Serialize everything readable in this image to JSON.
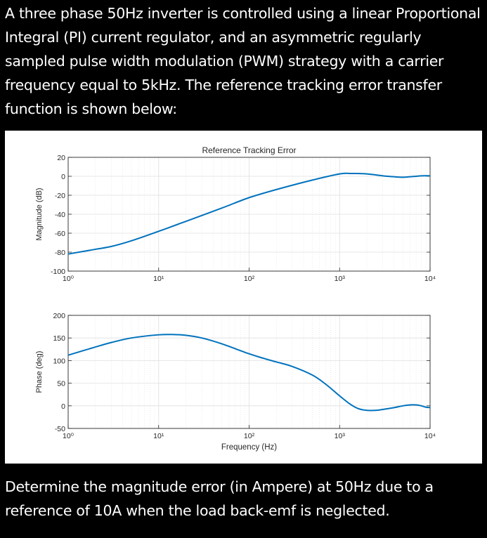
{
  "question": {
    "intro": "A three phase 50Hz inverter is controlled using a linear Proportional Integral (PI) current regulator, and an asymmetric regularly sampled pulse width modulation (PWM) strategy with a carrier frequency equal to 5kHz. The reference tracking error transfer function is shown below:",
    "prompt": "Determine the magnitude error (in Ampere) at 50Hz due to a reference of 10A when the load back-emf is neglected."
  },
  "colors": {
    "background": "#000000",
    "text": "#ffffff",
    "figure_background": "#ffffff",
    "curve": "#0072bd",
    "axis": "#262626",
    "grid": "#dfdfdf"
  },
  "chart_data": [
    {
      "type": "line",
      "title": "Reference Tracking Error",
      "xlabel": "",
      "ylabel": "Magnitude (dB)",
      "xscale": "log",
      "xlim": [
        1,
        10000
      ],
      "ylim": [
        -100,
        20
      ],
      "yticks": [
        20,
        0,
        -20,
        -40,
        -60,
        -80,
        -100
      ],
      "xticks": [
        "10⁰",
        "10¹",
        "10²",
        "10³",
        "10⁴"
      ],
      "grid": true,
      "x": [
        1,
        2,
        3,
        5,
        10,
        20,
        50,
        100,
        200,
        500,
        1000,
        1300,
        2000,
        3000,
        4000,
        5000,
        6000,
        7000,
        8000,
        10000
      ],
      "y": [
        -82,
        -77,
        -74,
        -68,
        -58,
        -47.5,
        -33.5,
        -22.5,
        -14,
        -4,
        2.5,
        3,
        2.5,
        0.5,
        -0.5,
        -1,
        -0.5,
        0,
        0.5,
        0.5
      ]
    },
    {
      "type": "line",
      "title": "",
      "xlabel": "Frequency (Hz)",
      "ylabel": "Phase (deg)",
      "xscale": "log",
      "xlim": [
        1,
        10000
      ],
      "ylim": [
        -50,
        200
      ],
      "yticks": [
        200,
        150,
        100,
        50,
        0,
        -50
      ],
      "xticks": [
        "10⁰",
        "10¹",
        "10²",
        "10³",
        "10⁴"
      ],
      "grid": true,
      "x": [
        1,
        2,
        3,
        5,
        10,
        15,
        20,
        30,
        50,
        100,
        150,
        200,
        300,
        500,
        700,
        1000,
        1300,
        1600,
        2000,
        2500,
        3000,
        4000,
        5000,
        6000,
        7000,
        8000,
        9000,
        10000
      ],
      "y": [
        112,
        130,
        140,
        150,
        157,
        157.5,
        156,
        150,
        137,
        115,
        104,
        97,
        87,
        68,
        48,
        22,
        4,
        -6,
        -10,
        -10,
        -8,
        -4,
        0,
        2,
        2,
        0,
        -3,
        -4
      ]
    }
  ]
}
